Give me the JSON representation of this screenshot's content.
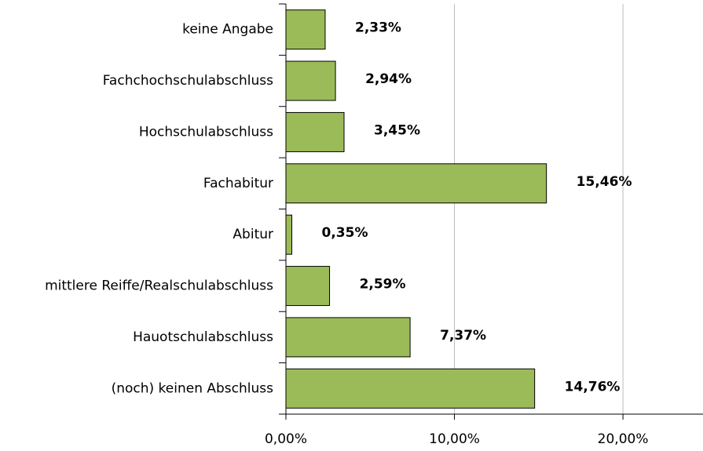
{
  "chart_data": {
    "type": "hbar",
    "categories": [
      "keine Angabe",
      "Fachchochschulabschluss",
      "Hochschulabschluss",
      "Fachabitur",
      "Abitur",
      "mittlere Reiffe/Realschulabschluss",
      "Hauotschulabschluss",
      "(noch) keinen Abschluss"
    ],
    "values": [
      2.33,
      2.94,
      3.45,
      15.46,
      0.35,
      2.59,
      7.37,
      14.76
    ],
    "value_labels": [
      "2,33%",
      "2,94%",
      "3,45%",
      "15,46%",
      "0,35%",
      "2,59%",
      "7,37%",
      "14,76%"
    ],
    "color": "#9bbb59",
    "xlim": [
      0,
      24.75
    ],
    "xticks": [
      {
        "value": 0,
        "label": "0,00%"
      },
      {
        "value": 10,
        "label": "10,00%"
      },
      {
        "value": 20,
        "label": "20,00%"
      }
    ],
    "grid": true
  }
}
